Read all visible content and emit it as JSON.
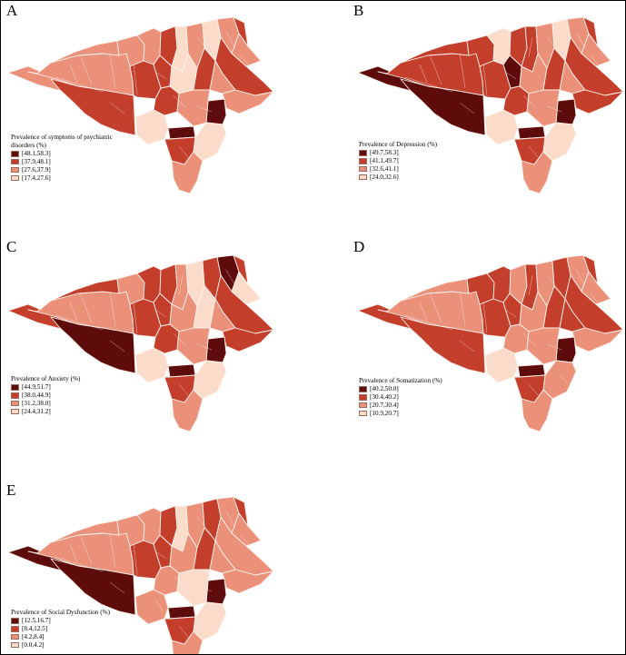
{
  "figure": {
    "palette": {
      "class1": "#5e0b0b",
      "class2": "#c43e2c",
      "class3": "#eb9179",
      "class4": "#fbdccb",
      "boundary": "#fdf3ee"
    },
    "panels": [
      {
        "letter": "A",
        "legend_title": "Prevalence of symptoms of psychiatric disorders (%)",
        "classes": [
          "[48.1,58.3]",
          "[37.9,48.1]",
          "[27.6,37.9]",
          "[17.4,27.6]"
        ],
        "regions": {
          "west": 3,
          "west_band": 2,
          "far_west": 3,
          "north_w1": 3,
          "north_w2": 3,
          "north_w3": 3,
          "north_c1": 2,
          "north_c2": 4,
          "north_c3": 3,
          "north_c4": 4,
          "north_c5": 3,
          "north_e1": 2,
          "north_e2": 3,
          "north_e3": 2,
          "central_w": 2,
          "central_c1": 2,
          "central_c2": 4,
          "central_c3": 2,
          "central_e1": 3,
          "central_e2": 2,
          "east_lobe": 3,
          "east_hot": 1,
          "south_hot": 1,
          "south_w": 4,
          "south_c1": 3,
          "south_c2": 2,
          "south_e": 4,
          "south_tail": 3
        }
      },
      {
        "letter": "B",
        "legend_title": "Prevalence of Depression (%)",
        "classes": [
          "[49.7,58.3]",
          "[41.1,49.7]",
          "[32.6,41.1]",
          "[24.0,32.6]"
        ],
        "regions": {
          "west": 2,
          "west_band": 1,
          "far_west": 1,
          "north_w1": 2,
          "north_w2": 2,
          "north_w3": 4,
          "north_c1": 2,
          "north_c2": 2,
          "north_c3": 3,
          "north_c4": 4,
          "north_c5": 3,
          "north_e1": 2,
          "north_e2": 3,
          "north_e3": 2,
          "central_w": 2,
          "central_c1": 1,
          "central_c2": 3,
          "central_c3": 2,
          "central_e1": 3,
          "central_e2": 2,
          "east_lobe": 2,
          "east_hot": 1,
          "south_hot": 1,
          "south_w": 4,
          "south_c1": 3,
          "south_c2": 2,
          "south_e": 4,
          "south_tail": 3
        }
      },
      {
        "letter": "C",
        "legend_title": "Prevalence of Anxiety (%)",
        "classes": [
          "[44.9,51.7]",
          "[38.0,44.9]",
          "[31.2,38.0]",
          "[24.4,31.2]"
        ],
        "regions": {
          "west": 3,
          "west_band": 1,
          "far_west": 2,
          "north_w1": 2,
          "north_w2": 3,
          "north_w3": 2,
          "north_c1": 2,
          "north_c2": 3,
          "north_c3": 4,
          "north_c4": 2,
          "north_c5": 1,
          "north_e1": 2,
          "north_e2": 4,
          "north_e3": 2,
          "central_w": 2,
          "central_c1": 2,
          "central_c2": 3,
          "central_c3": 4,
          "central_e1": 3,
          "central_e2": 2,
          "east_lobe": 2,
          "east_hot": 1,
          "south_hot": 1,
          "south_w": 4,
          "south_c1": 3,
          "south_c2": 2,
          "south_e": 4,
          "south_tail": 3
        }
      },
      {
        "letter": "D",
        "legend_title": "Prevalence of Somatization (%)",
        "classes": [
          "[40.2,50.0]",
          "[30.4,40.2]",
          "[20.7,30.4]",
          "[10.9,20.7]"
        ],
        "regions": {
          "west": 3,
          "west_band": 2,
          "far_west": 2,
          "north_w1": 3,
          "north_w2": 2,
          "north_w3": 2,
          "north_c1": 3,
          "north_c2": 2,
          "north_c3": 3,
          "north_c4": 2,
          "north_c5": 3,
          "north_e1": 2,
          "north_e2": 3,
          "north_e3": 2,
          "central_w": 2,
          "central_c1": 2,
          "central_c2": 3,
          "central_c3": 2,
          "central_e1": 2,
          "central_e2": 3,
          "east_lobe": 3,
          "east_hot": 1,
          "south_hot": 1,
          "south_w": 4,
          "south_c1": 3,
          "south_c2": 2,
          "south_e": 3,
          "south_tail": 3
        }
      },
      {
        "letter": "E",
        "legend_title": "Prevalence of Social Dysfunction (%)",
        "classes": [
          "[12.5,16.7]",
          "[8.4,12.5]",
          "[4.2,8.4]",
          "[0.0,4.2]"
        ],
        "regions": {
          "west": 3,
          "west_band": 1,
          "far_west": 1,
          "north_w1": 3,
          "north_w2": 3,
          "north_w3": 3,
          "north_c1": 2,
          "north_c2": 4,
          "north_c3": 3,
          "north_c4": 2,
          "north_c5": 3,
          "north_e1": 2,
          "north_e2": 3,
          "north_e3": 3,
          "central_w": 2,
          "central_c1": 2,
          "central_c2": 3,
          "central_c3": 2,
          "central_e1": 3,
          "central_e2": 3,
          "east_lobe": 3,
          "east_hot": 1,
          "south_hot": 1,
          "south_w": 3,
          "south_c1": 4,
          "south_c2": 2,
          "south_e": 4,
          "south_tail": 3
        }
      }
    ]
  }
}
